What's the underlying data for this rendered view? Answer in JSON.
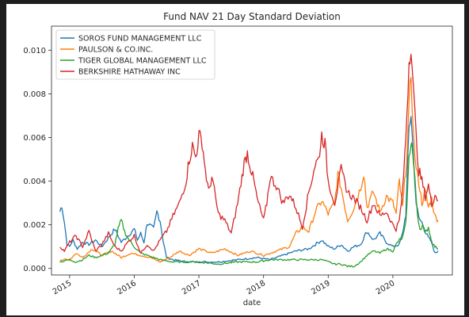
{
  "chart_data": {
    "type": "line",
    "title": "Fund NAV 21 Day Standard Deviation",
    "xlabel": "date",
    "ylabel": "",
    "xlim": [
      2014.72,
      2020.92
    ],
    "ylim": [
      -0.0003,
      0.0111
    ],
    "x_ticks": [
      2015,
      2016,
      2017,
      2018,
      2019,
      2020
    ],
    "x_tick_labels": [
      "2015",
      "2016",
      "2017",
      "2018",
      "2019",
      "2020"
    ],
    "y_ticks": [
      0.0,
      0.002,
      0.004,
      0.006,
      0.008,
      0.01
    ],
    "y_tick_labels": [
      "0.000",
      "0.002",
      "0.004",
      "0.006",
      "0.008",
      "0.010"
    ],
    "grid": false,
    "legend_position": "top-left",
    "series": [
      {
        "name": "SOROS FUND MANAGEMENT LLC",
        "color": "#1f77b4",
        "x": [
          2014.85,
          2014.88,
          2014.92,
          2014.96,
          2015.0,
          2015.05,
          2015.12,
          2015.2,
          2015.3,
          2015.4,
          2015.5,
          2015.6,
          2015.7,
          2015.8,
          2015.9,
          2016.0,
          2016.05,
          2016.1,
          2016.15,
          2016.2,
          2016.3,
          2016.35,
          2016.4,
          2016.45,
          2016.5,
          2016.6,
          2016.8,
          2017.0,
          2017.3,
          2017.6,
          2017.9,
          2018.1,
          2018.3,
          2018.5,
          2018.7,
          2018.9,
          2019.0,
          2019.1,
          2019.2,
          2019.3,
          2019.4,
          2019.5,
          2019.6,
          2019.7,
          2019.8,
          2019.9,
          2020.0,
          2020.1,
          2020.15,
          2020.2,
          2020.25,
          2020.28,
          2020.32,
          2020.36,
          2020.4,
          2020.45,
          2020.5,
          2020.55,
          2020.6,
          2020.65,
          2020.7
        ],
        "values": [
          0.0026,
          0.0029,
          0.0021,
          0.0011,
          0.001,
          0.0013,
          0.0009,
          0.0012,
          0.0011,
          0.0013,
          0.001,
          0.0014,
          0.0018,
          0.0012,
          0.0015,
          0.0018,
          0.0013,
          0.0016,
          0.0012,
          0.0021,
          0.0018,
          0.0026,
          0.0022,
          0.0012,
          0.0005,
          0.0004,
          0.0003,
          0.0003,
          0.0003,
          0.0004,
          0.0005,
          0.0004,
          0.0006,
          0.0008,
          0.0009,
          0.0013,
          0.001,
          0.0009,
          0.0011,
          0.0008,
          0.001,
          0.0011,
          0.0017,
          0.0013,
          0.0016,
          0.0012,
          0.001,
          0.0011,
          0.0016,
          0.0025,
          0.0064,
          0.0071,
          0.005,
          0.003,
          0.0023,
          0.0021,
          0.0017,
          0.0014,
          0.0012,
          0.0007,
          0.0008
        ]
      },
      {
        "name": "PAULSON & CO.INC.",
        "color": "#ff7f0e",
        "x": [
          2014.85,
          2015.0,
          2015.1,
          2015.2,
          2015.35,
          2015.5,
          2015.65,
          2015.8,
          2015.95,
          2016.1,
          2016.25,
          2016.4,
          2016.55,
          2016.7,
          2016.85,
          2017.0,
          2017.2,
          2017.4,
          2017.6,
          2017.8,
          2018.0,
          2018.2,
          2018.4,
          2018.5,
          2018.6,
          2018.7,
          2018.8,
          2018.9,
          2019.0,
          2019.1,
          2019.15,
          2019.2,
          2019.3,
          2019.4,
          2019.5,
          2019.55,
          2019.6,
          2019.7,
          2019.8,
          2019.9,
          2020.0,
          2020.05,
          2020.1,
          2020.15,
          2020.2,
          2020.25,
          2020.28,
          2020.32,
          2020.36,
          2020.4,
          2020.45,
          2020.5,
          2020.55,
          2020.6,
          2020.65,
          2020.7
        ],
        "values": [
          0.0004,
          0.0004,
          0.0007,
          0.0005,
          0.0009,
          0.0006,
          0.0008,
          0.0005,
          0.0007,
          0.0006,
          0.0005,
          0.0003,
          0.0005,
          0.0008,
          0.0006,
          0.0009,
          0.0007,
          0.0009,
          0.0006,
          0.0008,
          0.0006,
          0.0008,
          0.001,
          0.0016,
          0.0019,
          0.0017,
          0.0026,
          0.0031,
          0.0025,
          0.003,
          0.0043,
          0.0037,
          0.0022,
          0.0028,
          0.0037,
          0.0044,
          0.0028,
          0.0035,
          0.0026,
          0.0033,
          0.003,
          0.0025,
          0.004,
          0.0028,
          0.0045,
          0.0072,
          0.009,
          0.006,
          0.0045,
          0.004,
          0.003,
          0.0035,
          0.0028,
          0.0032,
          0.0024,
          0.0022
        ]
      },
      {
        "name": "TIGER GLOBAL MANAGEMENT LLC",
        "color": "#2ca02c",
        "x": [
          2014.85,
          2015.0,
          2015.1,
          2015.2,
          2015.3,
          2015.4,
          2015.5,
          2015.6,
          2015.65,
          2015.7,
          2015.75,
          2015.8,
          2015.85,
          2015.9,
          2016.0,
          2016.1,
          2016.2,
          2016.4,
          2016.6,
          2016.8,
          2017.0,
          2017.3,
          2017.6,
          2017.9,
          2018.1,
          2018.3,
          2018.5,
          2018.7,
          2018.9,
          2019.0,
          2019.1,
          2019.2,
          2019.3,
          2019.4,
          2019.5,
          2019.6,
          2019.7,
          2019.8,
          2019.9,
          2020.0,
          2020.05,
          2020.1,
          2020.15,
          2020.2,
          2020.25,
          2020.28,
          2020.3,
          2020.34,
          2020.38,
          2020.42,
          2020.46,
          2020.5,
          2020.55,
          2020.6,
          2020.65,
          2020.7
        ],
        "values": [
          0.0003,
          0.0004,
          0.0003,
          0.0004,
          0.0006,
          0.0005,
          0.0006,
          0.0007,
          0.0009,
          0.0011,
          0.0018,
          0.0022,
          0.0017,
          0.0014,
          0.001,
          0.0007,
          0.0006,
          0.0004,
          0.0003,
          0.0003,
          0.0003,
          0.0002,
          0.0003,
          0.0003,
          0.0004,
          0.0004,
          0.0004,
          0.0004,
          0.0004,
          0.0003,
          0.0002,
          0.0002,
          0.0001,
          0.0001,
          0.0003,
          0.0006,
          0.0008,
          0.0007,
          0.0009,
          0.0008,
          0.0011,
          0.0013,
          0.0014,
          0.002,
          0.005,
          0.0059,
          0.0055,
          0.004,
          0.0025,
          0.0018,
          0.002,
          0.0016,
          0.0019,
          0.0012,
          0.001,
          0.0009
        ]
      },
      {
        "name": "BERKSHIRE HATHAWAY INC",
        "color": "#d62728",
        "x": [
          2014.85,
          2014.92,
          2015.0,
          2015.1,
          2015.2,
          2015.3,
          2015.4,
          2015.5,
          2015.6,
          2015.7,
          2015.8,
          2015.9,
          2016.0,
          2016.1,
          2016.2,
          2016.3,
          2016.4,
          2016.5,
          2016.6,
          2016.7,
          2016.8,
          2016.85,
          2016.9,
          2016.95,
          2017.0,
          2017.05,
          2017.1,
          2017.15,
          2017.2,
          2017.3,
          2017.4,
          2017.5,
          2017.6,
          2017.65,
          2017.7,
          2017.75,
          2017.8,
          2017.85,
          2017.9,
          2018.0,
          2018.05,
          2018.1,
          2018.2,
          2018.3,
          2018.4,
          2018.5,
          2018.6,
          2018.7,
          2018.8,
          2018.85,
          2018.9,
          2018.95,
          2019.0,
          2019.1,
          2019.2,
          2019.3,
          2019.4,
          2019.5,
          2019.6,
          2019.7,
          2019.8,
          2019.9,
          2020.0,
          2020.05,
          2020.1,
          2020.15,
          2020.2,
          2020.25,
          2020.28,
          2020.32,
          2020.36,
          2020.4,
          2020.45,
          2020.5,
          2020.55,
          2020.6,
          2020.65,
          2020.7
        ],
        "values": [
          0.001,
          0.0008,
          0.0012,
          0.0015,
          0.001,
          0.0017,
          0.0008,
          0.0011,
          0.0016,
          0.001,
          0.0008,
          0.0012,
          0.0015,
          0.0007,
          0.0011,
          0.0008,
          0.0013,
          0.0017,
          0.0024,
          0.003,
          0.004,
          0.005,
          0.0056,
          0.0051,
          0.0061,
          0.0058,
          0.0045,
          0.0035,
          0.0042,
          0.0025,
          0.0022,
          0.0016,
          0.003,
          0.0039,
          0.0048,
          0.0053,
          0.0046,
          0.004,
          0.0032,
          0.0022,
          0.003,
          0.0042,
          0.0038,
          0.003,
          0.0034,
          0.0028,
          0.0019,
          0.0035,
          0.0048,
          0.005,
          0.0061,
          0.0057,
          0.004,
          0.003,
          0.0045,
          0.0035,
          0.0032,
          0.0028,
          0.0022,
          0.003,
          0.0024,
          0.0026,
          0.002,
          0.0018,
          0.0022,
          0.0035,
          0.006,
          0.0095,
          0.0104,
          0.008,
          0.006,
          0.0045,
          0.004,
          0.0033,
          0.0038,
          0.0029,
          0.0034,
          0.0031
        ]
      }
    ]
  }
}
